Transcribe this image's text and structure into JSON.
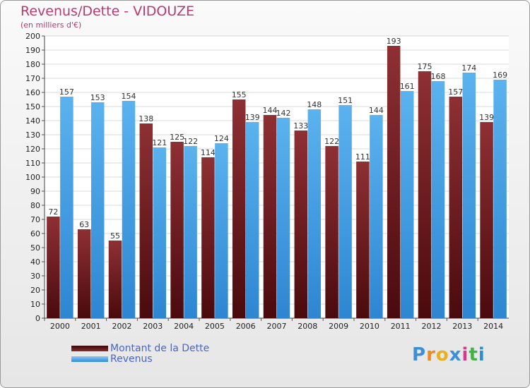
{
  "chart_data": {
    "type": "bar",
    "title": "Revenus/Dette - VIDOUZE",
    "subtitle": "(en milliers d'€)",
    "categories": [
      "2000",
      "2001",
      "2002",
      "2003",
      "2004",
      "2005",
      "2006",
      "2007",
      "2008",
      "2009",
      "2010",
      "2011",
      "2012",
      "2013",
      "2014"
    ],
    "series": [
      {
        "name": "Montant de la Dette",
        "color": "#7a1e22",
        "values": [
          72,
          63,
          55,
          138,
          125,
          114,
          155,
          144,
          133,
          122,
          111,
          193,
          175,
          157,
          139
        ]
      },
      {
        "name": "Revenus",
        "color": "#4aa3e6",
        "values": [
          157,
          153,
          154,
          121,
          122,
          124,
          139,
          142,
          148,
          151,
          144,
          161,
          168,
          174,
          169
        ]
      }
    ],
    "ylim": [
      0,
      200
    ],
    "ytick_step": 10,
    "grid": true,
    "legend": "bottom-left"
  },
  "brand": {
    "logo_text": "Proxiti"
  }
}
